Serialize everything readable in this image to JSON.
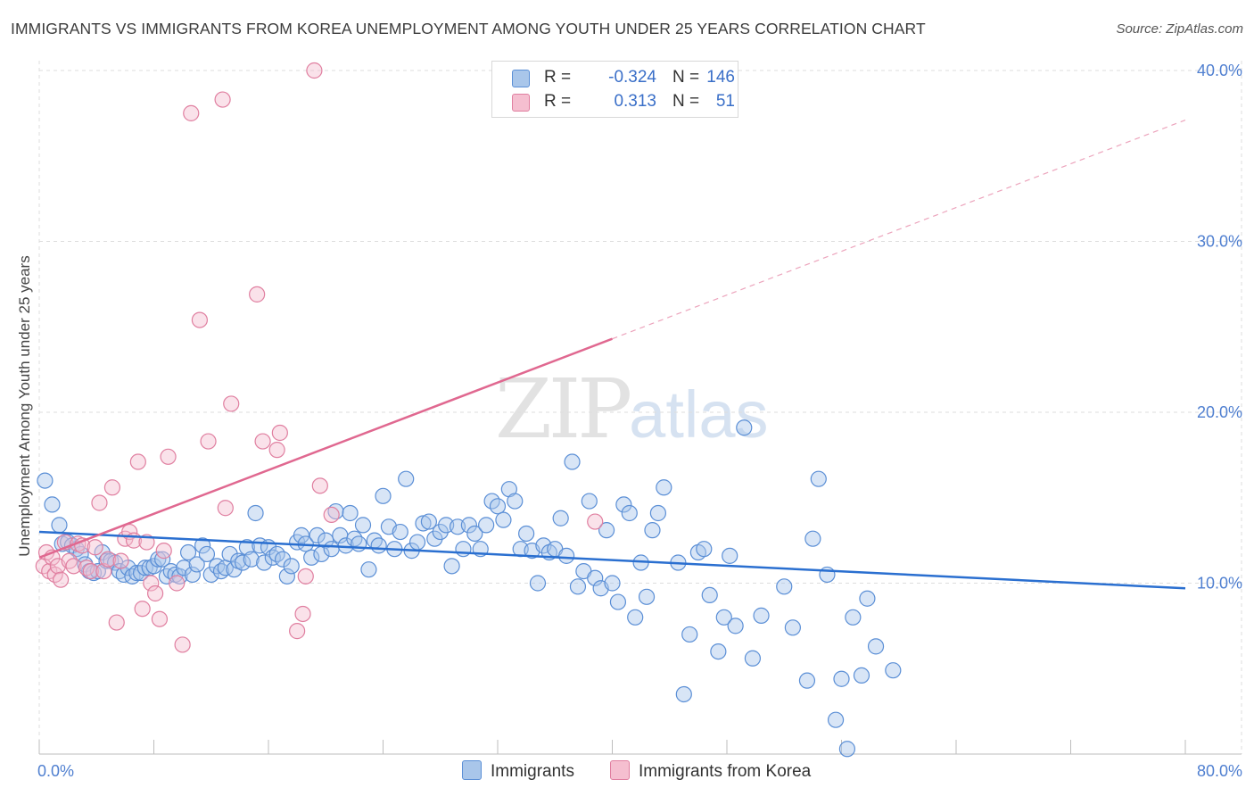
{
  "title": "IMMIGRANTS VS IMMIGRANTS FROM KOREA UNEMPLOYMENT AMONG YOUTH UNDER 25 YEARS CORRELATION CHART",
  "source": "Source: ZipAtlas.com",
  "watermark": {
    "zip": "ZIP",
    "atlas": "atlas"
  },
  "legend_stats": [
    {
      "r_label": "R =",
      "r_value": "-0.324",
      "n_label": "N =",
      "n_value": "146"
    },
    {
      "r_label": "R =",
      "r_value": "0.313",
      "n_label": "N =",
      "n_value": "51"
    }
  ],
  "colors": {
    "immigrants_fill": "#a9c6ea",
    "immigrants_stroke": "#5b8fd6",
    "immigrants_line": "#2a6fd0",
    "korea_fill": "#f5bfd0",
    "korea_stroke": "#e07fa0",
    "korea_line": "#e06890",
    "grid": "#dddddd",
    "tick_label": "#4f7fd0"
  },
  "chart_data": {
    "type": "scatter",
    "ylabel": "Unemployment Among Youth under 25 years",
    "xlim": [
      0,
      80
    ],
    "ylim": [
      0,
      42
    ],
    "x_tick_labels": [
      "0.0%",
      "80.0%"
    ],
    "y_ticks": [
      10,
      20,
      30,
      40
    ],
    "y_tick_labels": [
      "10.0%",
      "20.0%",
      "30.0%",
      "40.0%"
    ],
    "grid": "horizontal dashed",
    "legend_position": "top-center",
    "series": [
      {
        "name": "Immigrants",
        "trend": {
          "x0": 0,
          "y0": 13.0,
          "x1": 80,
          "y1": 9.7
        },
        "points": [
          [
            0.4,
            16.0
          ],
          [
            0.9,
            14.6
          ],
          [
            1.4,
            13.4
          ],
          [
            1.6,
            12.3
          ],
          [
            2.0,
            12.4
          ],
          [
            2.3,
            12.2
          ],
          [
            2.6,
            12.0
          ],
          [
            2.9,
            11.7
          ],
          [
            3.2,
            11.1
          ],
          [
            3.5,
            10.7
          ],
          [
            3.8,
            10.6
          ],
          [
            4.1,
            10.7
          ],
          [
            4.4,
            11.8
          ],
          [
            4.7,
            11.3
          ],
          [
            5.0,
            11.3
          ],
          [
            5.3,
            11.2
          ],
          [
            5.6,
            10.7
          ],
          [
            5.9,
            10.5
          ],
          [
            6.2,
            10.9
          ],
          [
            6.5,
            10.4
          ],
          [
            6.8,
            10.6
          ],
          [
            7.1,
            10.6
          ],
          [
            7.4,
            10.9
          ],
          [
            7.7,
            10.9
          ],
          [
            8.0,
            11.0
          ],
          [
            8.3,
            11.4
          ],
          [
            8.6,
            11.4
          ],
          [
            8.9,
            10.4
          ],
          [
            9.2,
            10.7
          ],
          [
            9.5,
            10.5
          ],
          [
            9.8,
            10.4
          ],
          [
            10.1,
            10.9
          ],
          [
            10.4,
            11.8
          ],
          [
            10.7,
            10.5
          ],
          [
            11.0,
            11.1
          ],
          [
            11.4,
            12.2
          ],
          [
            11.7,
            11.7
          ],
          [
            12.0,
            10.5
          ],
          [
            12.4,
            11.0
          ],
          [
            12.7,
            10.7
          ],
          [
            13.0,
            10.9
          ],
          [
            13.3,
            11.7
          ],
          [
            13.6,
            10.8
          ],
          [
            13.9,
            11.3
          ],
          [
            14.2,
            11.2
          ],
          [
            14.5,
            12.1
          ],
          [
            14.8,
            11.4
          ],
          [
            15.1,
            14.1
          ],
          [
            15.4,
            12.2
          ],
          [
            15.7,
            11.2
          ],
          [
            16.0,
            12.1
          ],
          [
            16.3,
            11.5
          ],
          [
            16.6,
            11.7
          ],
          [
            17.0,
            11.4
          ],
          [
            17.3,
            10.4
          ],
          [
            17.6,
            11.0
          ],
          [
            18.0,
            12.4
          ],
          [
            18.3,
            12.8
          ],
          [
            18.6,
            12.3
          ],
          [
            19.0,
            11.5
          ],
          [
            19.4,
            12.8
          ],
          [
            19.7,
            11.7
          ],
          [
            20.0,
            12.5
          ],
          [
            20.4,
            12.0
          ],
          [
            20.7,
            14.2
          ],
          [
            21.0,
            12.8
          ],
          [
            21.4,
            12.2
          ],
          [
            21.7,
            14.1
          ],
          [
            22.0,
            12.6
          ],
          [
            22.3,
            12.3
          ],
          [
            22.6,
            13.4
          ],
          [
            23.0,
            10.8
          ],
          [
            23.4,
            12.5
          ],
          [
            23.7,
            12.2
          ],
          [
            24.0,
            15.1
          ],
          [
            24.4,
            13.3
          ],
          [
            24.8,
            12.0
          ],
          [
            25.2,
            13.0
          ],
          [
            25.6,
            16.1
          ],
          [
            26.0,
            11.9
          ],
          [
            26.4,
            12.4
          ],
          [
            26.8,
            13.5
          ],
          [
            27.2,
            13.6
          ],
          [
            27.6,
            12.6
          ],
          [
            28.0,
            13.0
          ],
          [
            28.4,
            13.4
          ],
          [
            28.8,
            11.0
          ],
          [
            29.2,
            13.3
          ],
          [
            29.6,
            12.0
          ],
          [
            30.0,
            13.4
          ],
          [
            30.4,
            12.9
          ],
          [
            30.8,
            12.0
          ],
          [
            31.2,
            13.4
          ],
          [
            31.6,
            14.8
          ],
          [
            32.0,
            14.5
          ],
          [
            32.4,
            13.7
          ],
          [
            32.8,
            15.5
          ],
          [
            33.2,
            14.8
          ],
          [
            33.6,
            12.0
          ],
          [
            34.0,
            12.9
          ],
          [
            34.4,
            11.9
          ],
          [
            34.8,
            10.0
          ],
          [
            35.2,
            12.2
          ],
          [
            35.6,
            11.8
          ],
          [
            36.0,
            12.0
          ],
          [
            36.4,
            13.8
          ],
          [
            36.8,
            11.6
          ],
          [
            37.2,
            17.1
          ],
          [
            37.6,
            9.8
          ],
          [
            38.0,
            10.7
          ],
          [
            38.4,
            14.8
          ],
          [
            38.8,
            10.3
          ],
          [
            39.2,
            9.7
          ],
          [
            39.6,
            13.1
          ],
          [
            40.0,
            10.0
          ],
          [
            40.4,
            8.9
          ],
          [
            40.8,
            14.6
          ],
          [
            41.2,
            14.1
          ],
          [
            41.6,
            8.0
          ],
          [
            42.0,
            11.2
          ],
          [
            42.4,
            9.2
          ],
          [
            42.8,
            13.1
          ],
          [
            43.2,
            14.1
          ],
          [
            43.6,
            15.6
          ],
          [
            44.6,
            11.2
          ],
          [
            45.0,
            3.5
          ],
          [
            45.4,
            7.0
          ],
          [
            46.0,
            11.8
          ],
          [
            46.4,
            12.0
          ],
          [
            46.8,
            9.3
          ],
          [
            47.4,
            6.0
          ],
          [
            47.8,
            8.0
          ],
          [
            48.2,
            11.6
          ],
          [
            48.6,
            7.5
          ],
          [
            49.2,
            19.1
          ],
          [
            49.8,
            5.6
          ],
          [
            50.4,
            8.1
          ],
          [
            52.0,
            9.8
          ],
          [
            52.6,
            7.4
          ],
          [
            53.6,
            4.3
          ],
          [
            54.0,
            12.6
          ],
          [
            54.4,
            16.1
          ],
          [
            55.0,
            10.5
          ],
          [
            55.6,
            2.0
          ],
          [
            56.0,
            4.4
          ],
          [
            56.4,
            0.3
          ],
          [
            56.8,
            8.0
          ],
          [
            57.4,
            4.6
          ],
          [
            57.8,
            9.1
          ],
          [
            58.4,
            6.3
          ],
          [
            59.6,
            4.9
          ]
        ]
      },
      {
        "name": "Immigrants from Korea",
        "trend": {
          "x0": 0,
          "y0": 11.5,
          "x1": 40,
          "y1": 24.3,
          "dashed_to_x": 80,
          "dashed_to_y": 37.1
        },
        "points": [
          [
            0.3,
            11.0
          ],
          [
            0.5,
            11.8
          ],
          [
            0.7,
            10.7
          ],
          [
            0.9,
            11.5
          ],
          [
            1.1,
            10.5
          ],
          [
            1.3,
            11.0
          ],
          [
            1.5,
            10.2
          ],
          [
            1.8,
            12.4
          ],
          [
            2.1,
            11.3
          ],
          [
            2.4,
            11.0
          ],
          [
            2.7,
            12.3
          ],
          [
            3.0,
            12.2
          ],
          [
            3.3,
            10.9
          ],
          [
            3.6,
            10.7
          ],
          [
            3.9,
            12.1
          ],
          [
            4.2,
            14.7
          ],
          [
            4.5,
            10.7
          ],
          [
            4.8,
            11.4
          ],
          [
            5.1,
            15.6
          ],
          [
            5.4,
            7.7
          ],
          [
            5.7,
            11.3
          ],
          [
            6.0,
            12.6
          ],
          [
            6.3,
            13.0
          ],
          [
            6.6,
            12.5
          ],
          [
            6.9,
            17.1
          ],
          [
            7.2,
            8.5
          ],
          [
            7.5,
            12.4
          ],
          [
            7.8,
            10.0
          ],
          [
            8.1,
            9.4
          ],
          [
            8.4,
            7.9
          ],
          [
            8.7,
            11.9
          ],
          [
            9.0,
            17.4
          ],
          [
            9.6,
            10.0
          ],
          [
            10.0,
            6.4
          ],
          [
            10.6,
            37.5
          ],
          [
            11.2,
            25.4
          ],
          [
            11.8,
            18.3
          ],
          [
            12.8,
            38.3
          ],
          [
            13.0,
            14.4
          ],
          [
            13.4,
            20.5
          ],
          [
            15.2,
            26.9
          ],
          [
            15.6,
            18.3
          ],
          [
            16.6,
            17.8
          ],
          [
            16.8,
            18.8
          ],
          [
            18.0,
            7.2
          ],
          [
            18.4,
            8.2
          ],
          [
            18.6,
            10.4
          ],
          [
            19.2,
            40.0
          ],
          [
            19.6,
            15.7
          ],
          [
            20.4,
            14.0
          ],
          [
            38.8,
            13.6
          ]
        ]
      }
    ]
  },
  "bottom_legend": [
    "Immigrants",
    "Immigrants from Korea"
  ]
}
